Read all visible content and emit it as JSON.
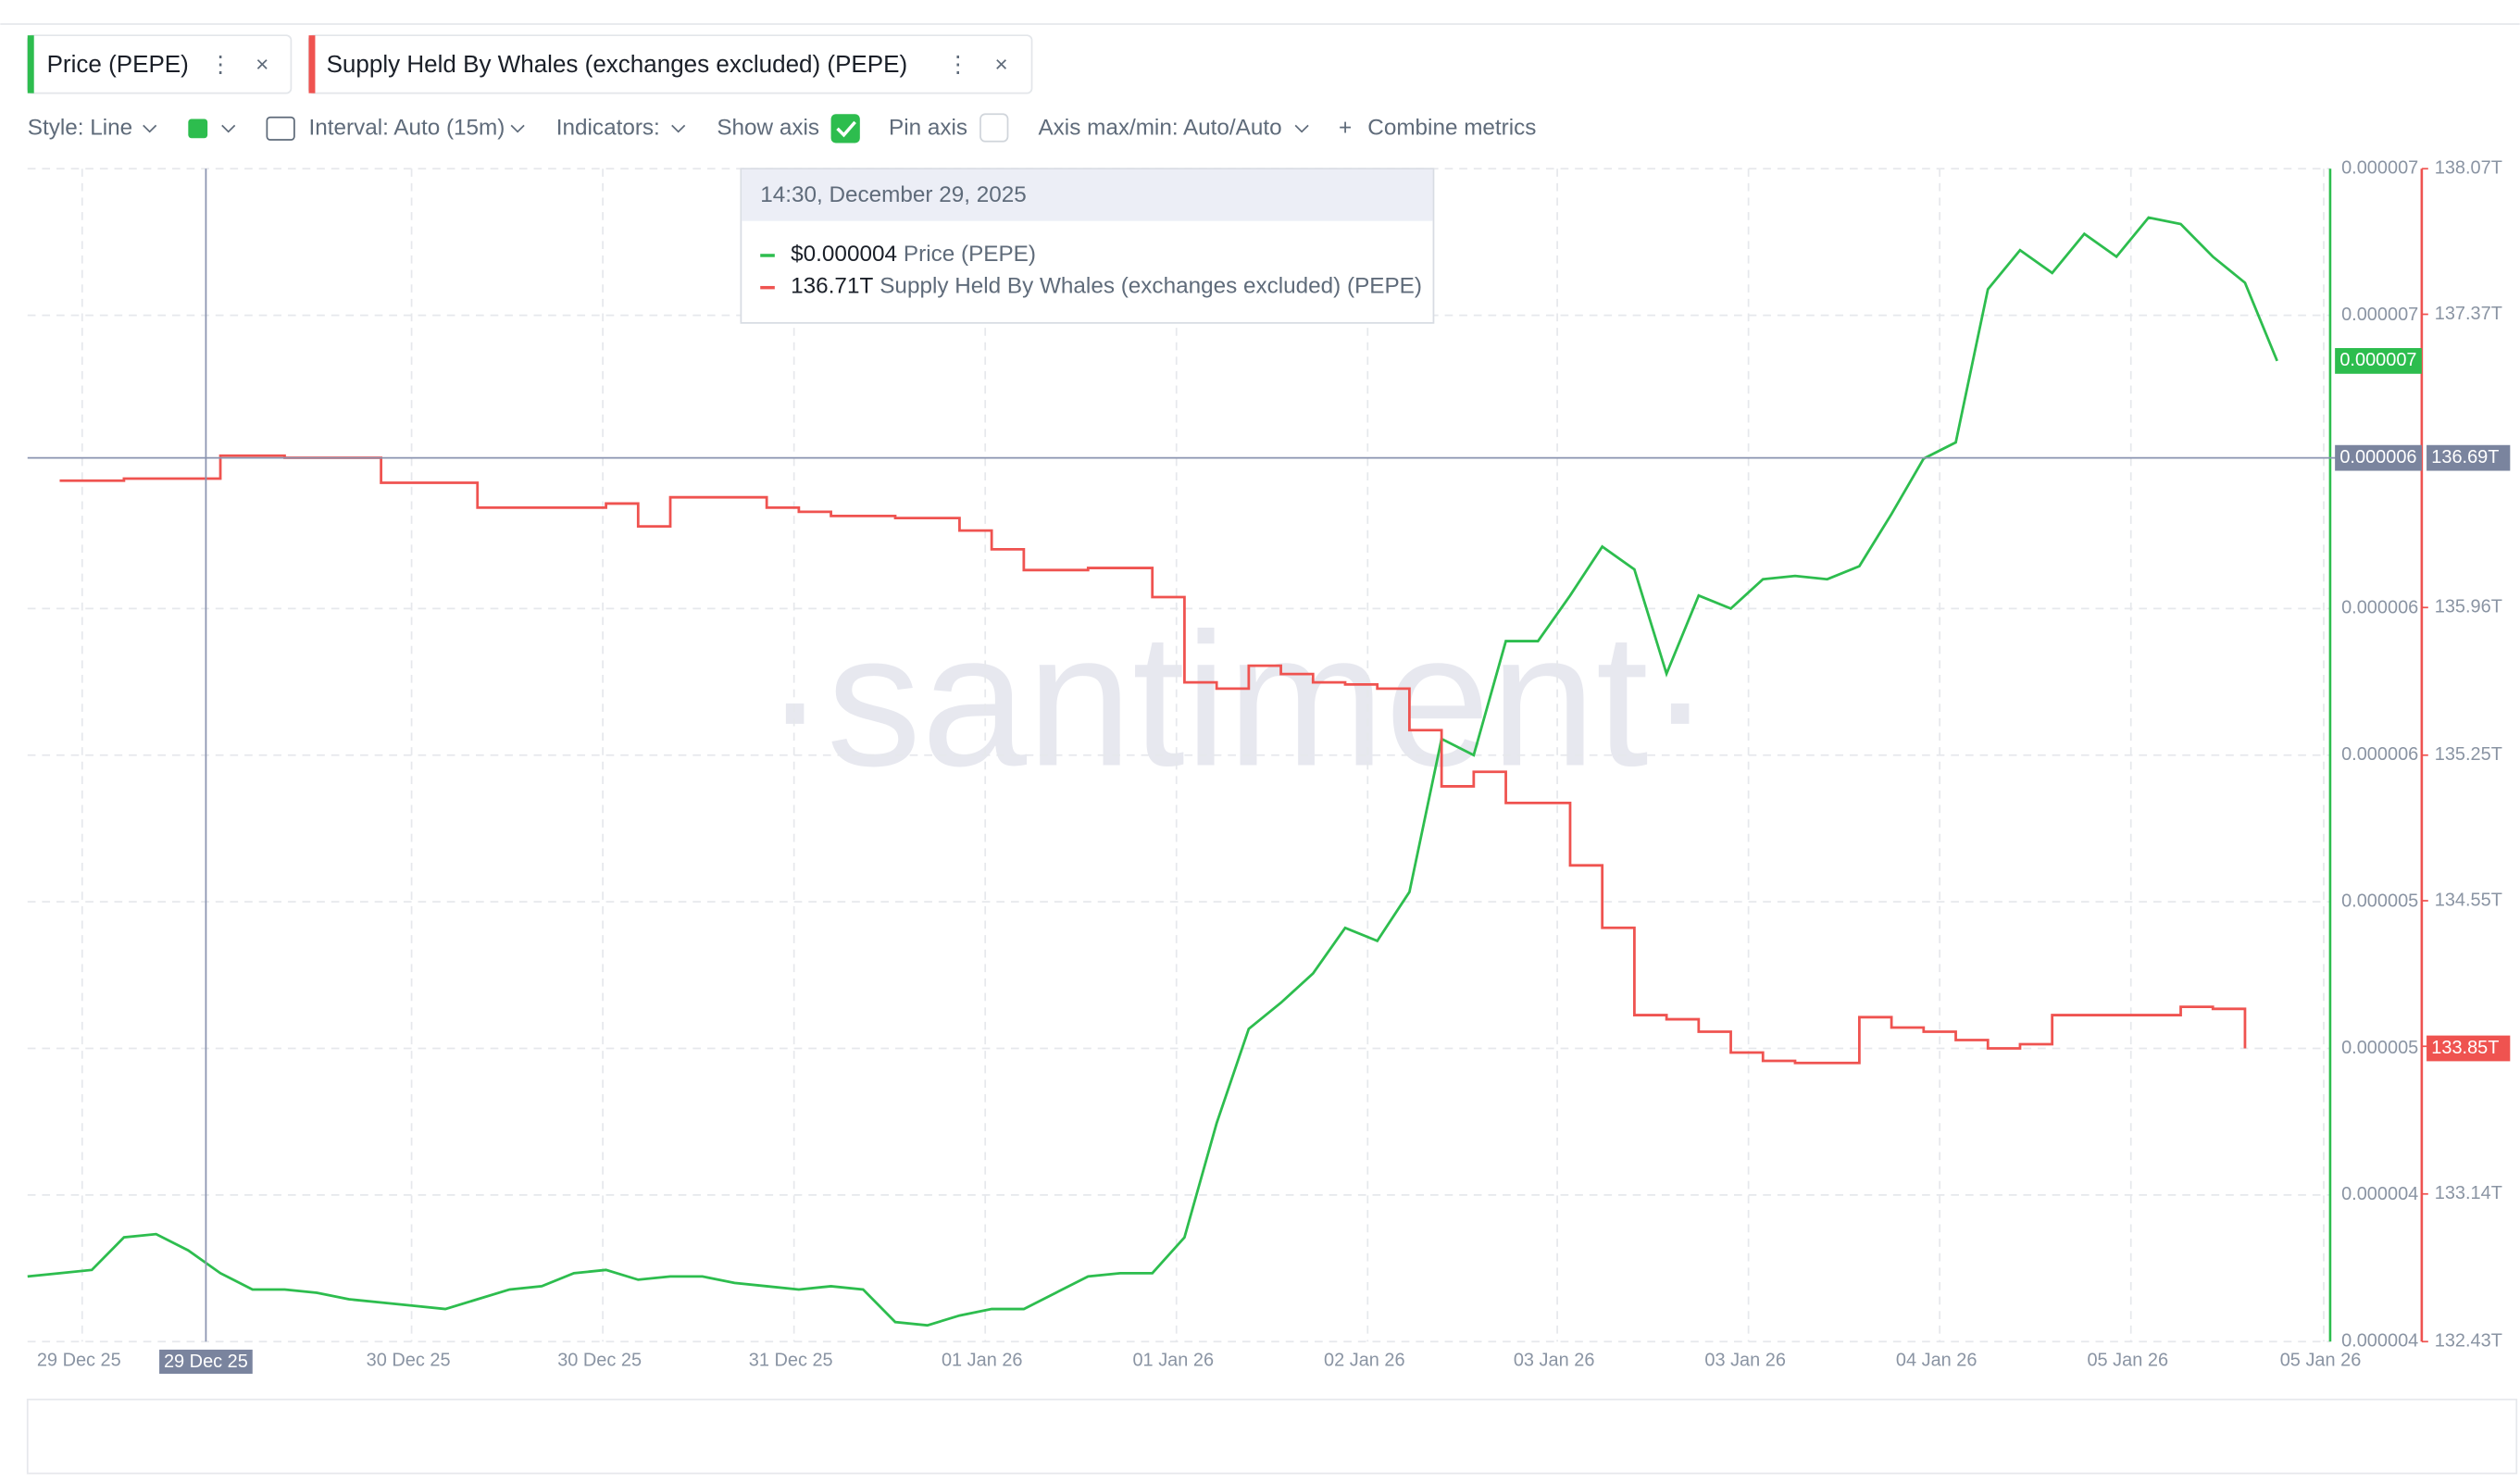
{
  "chart_data": {
    "type": "line",
    "series": [
      {
        "name": "Price (PEPE)",
        "color": "#2dbd4e",
        "axis": "y",
        "values": [
          3.95e-06,
          3.96e-06,
          3.97e-06,
          4.07e-06,
          4.08e-06,
          4.03e-06,
          3.96e-06,
          3.91e-06,
          3.91e-06,
          3.9e-06,
          3.88e-06,
          3.87e-06,
          3.86e-06,
          3.85e-06,
          3.88e-06,
          3.91e-06,
          3.92e-06,
          3.96e-06,
          3.97e-06,
          3.94e-06,
          3.95e-06,
          3.95e-06,
          3.93e-06,
          3.92e-06,
          3.91e-06,
          3.92e-06,
          3.91e-06,
          3.81e-06,
          3.8e-06,
          3.83e-06,
          3.85e-06,
          3.85e-06,
          3.9e-06,
          3.95e-06,
          3.96e-06,
          3.96e-06,
          4.07e-06,
          4.42e-06,
          4.71e-06,
          4.79e-06,
          4.88e-06,
          5.02e-06,
          4.98e-06,
          5.13e-06,
          5.6e-06,
          5.55e-06,
          5.9e-06,
          5.9e-06,
          6.04e-06,
          6.19e-06,
          6.12e-06,
          5.8e-06,
          6.04e-06,
          6e-06,
          6.09e-06,
          6.1e-06,
          6.09e-06,
          6.13e-06,
          6.29e-06,
          6.46e-06,
          6.51e-06,
          6.98e-06,
          7.1e-06,
          7.03e-06,
          7.15e-06,
          7.08e-06,
          7.2e-06,
          7.18e-06,
          7.08e-06,
          7e-06,
          6.76e-06
        ]
      },
      {
        "name": "Supply Held By Whales (exchanges excluded) (PEPE)",
        "color": "#ef5350",
        "axis": "y2",
        "step": true,
        "values": [
          null,
          136.57,
          136.57,
          136.58,
          136.58,
          136.58,
          136.69,
          136.69,
          136.68,
          136.68,
          136.68,
          136.56,
          136.56,
          136.56,
          136.44,
          136.44,
          136.44,
          136.44,
          136.46,
          136.35,
          136.49,
          136.49,
          136.49,
          136.44,
          136.42,
          136.4,
          136.4,
          136.39,
          136.39,
          136.33,
          136.24,
          136.14,
          136.14,
          136.15,
          136.15,
          136.01,
          135.6,
          135.57,
          135.68,
          135.64,
          135.6,
          135.59,
          135.57,
          135.37,
          135.1,
          135.17,
          135.02,
          135.02,
          134.72,
          134.42,
          134.0,
          133.98,
          133.92,
          133.82,
          133.78,
          133.77,
          133.77,
          133.99,
          133.94,
          133.92,
          133.88,
          133.84,
          133.86,
          134.0,
          134.0,
          134.0,
          134.0,
          134.04,
          134.03,
          133.84,
          null
        ]
      }
    ],
    "ylim": [
      3.75e-06,
      7.35e-06
    ],
    "yticks": [
      {
        "value": 3.75e-06,
        "label": "0.000004"
      },
      {
        "value": 4.2e-06,
        "label": "0.000004"
      },
      {
        "value": 4.65e-06,
        "label": "0.000005"
      },
      {
        "value": 5.1e-06,
        "label": "0.000005"
      },
      {
        "value": 5.55e-06,
        "label": "0.000006"
      },
      {
        "value": 6e-06,
        "label": "0.000006"
      },
      {
        "value": 6.9e-06,
        "label": "0.000007"
      },
      {
        "value": 7.35e-06,
        "label": "0.000007"
      }
    ],
    "y2lim": [
      132.43,
      138.07
    ],
    "y2ticks": [
      {
        "value": 132.43,
        "label": "132.43T"
      },
      {
        "value": 133.14,
        "label": "133.14T"
      },
      {
        "value": 133.85,
        "label": "133.85T"
      },
      {
        "value": 134.55,
        "label": "134.55T"
      },
      {
        "value": 135.25,
        "label": "135.25T"
      },
      {
        "value": 135.96,
        "label": "135.96T"
      },
      {
        "value": 137.37,
        "label": "137.37T"
      },
      {
        "value": 138.07,
        "label": "138.07T"
      }
    ],
    "x_labels": [
      "29 Dec 25",
      "30 Dec 25",
      "30 Dec 25",
      "31 Dec 25",
      "01 Jan 26",
      "01 Jan 26",
      "02 Jan 26",
      "03 Jan 26",
      "03 Jan 26",
      "04 Jan 26",
      "05 Jan 26",
      "05 Jan 26"
    ],
    "grid": true
  },
  "ui": {
    "toolbar": {
      "style": "Style: Line",
      "interval": "Interval: Auto (15m)",
      "indicators": "Indicators:",
      "show_axis": "Show axis",
      "pin_axis": "Pin axis",
      "axis_minmax": "Axis max/min: Auto/Auto",
      "combine": "Combine metrics"
    },
    "tooltip": {
      "date": "14:30, December 29, 2025",
      "price_value": "$0.000004",
      "price_name": "Price (PEPE)",
      "supply_value": "136.71T",
      "supply_name": "Supply Held By Whales (exchanges excluded) (PEPE)"
    },
    "badges": {
      "price_current": "0.000007",
      "price_cursor": "0.000006",
      "supply_cursor": "136.69T",
      "supply_current": "133.85T",
      "x_cursor": "29 Dec 25"
    },
    "watermark": "·santiment·"
  }
}
